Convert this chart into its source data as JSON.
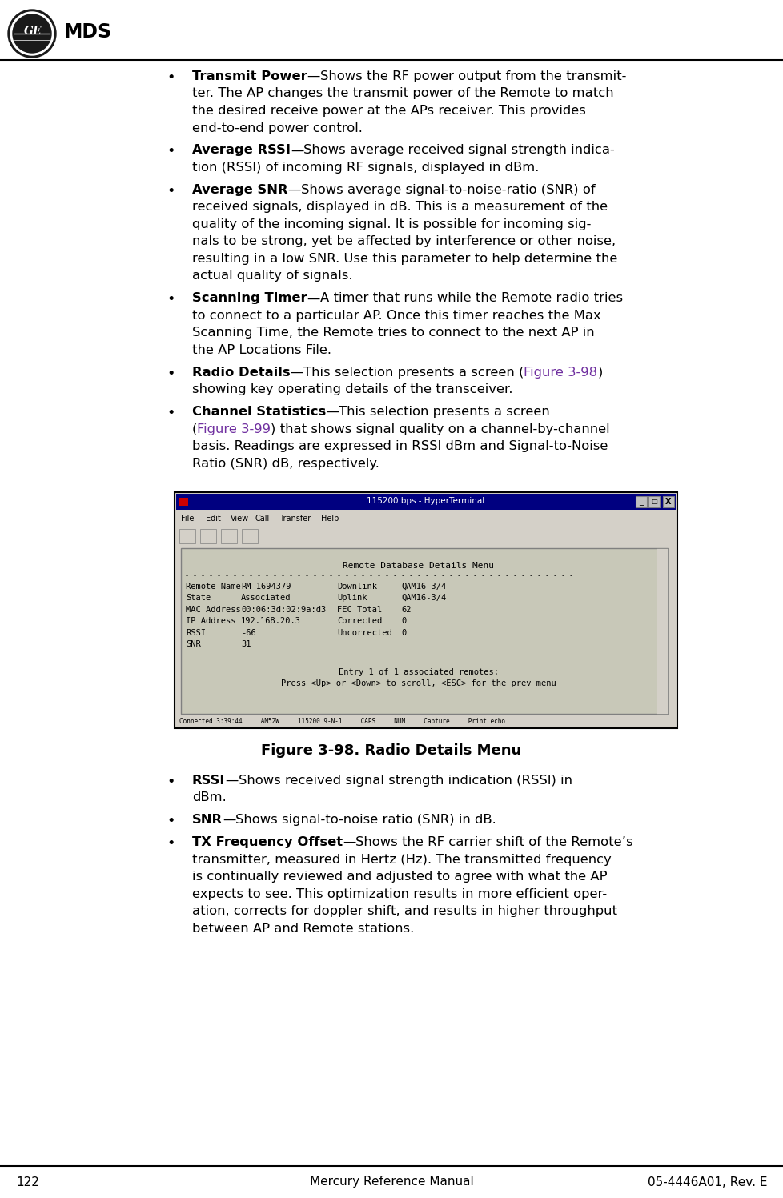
{
  "page_number": "122",
  "center_text": "Mercury Reference Manual",
  "right_text": "05-4446A01, Rev. E",
  "figure_caption": "Figure 3-98. Radio Details Menu",
  "bg_color": "#ffffff",
  "text_color": "#000000",
  "link_color": "#7030a0",
  "bullet_items": [
    {
      "bold": "Transmit Power",
      "lines": [
        "Shows the RF power output from the transmit-",
        "ter. The AP changes the transmit power of the Remote to match",
        "the desired receive power at the APs receiver. This provides",
        "end-to-end power control."
      ]
    },
    {
      "bold": "Average RSSI",
      "lines": [
        "Shows average received signal strength indica-",
        "tion (RSSI) of incoming RF signals, displayed in dBm."
      ]
    },
    {
      "bold": "Average SNR",
      "lines": [
        "Shows average signal-to-noise-ratio (SNR) of",
        "received signals, displayed in dB. This is a measurement of the",
        "quality of the incoming signal. It is possible for incoming sig-",
        "nals to be strong, yet be affected by interference or other noise,",
        "resulting in a low SNR. Use this parameter to help determine the",
        "actual quality of signals."
      ]
    },
    {
      "bold": "Scanning Timer",
      "lines": [
        "A timer that runs while the Remote radio tries",
        "to connect to a particular AP. Once this timer reaches the Max",
        "Scanning Time, the Remote tries to connect to the next AP in",
        "the AP Locations File."
      ]
    },
    {
      "bold": "Radio Details",
      "lines": [
        {
          "parts": [
            "This selection presents a screen (",
            {
              "link": "Figure 3-98"
            },
            ")"
          ]
        },
        "showing key operating details of the transceiver."
      ]
    },
    {
      "bold": "Channel Statistics",
      "lines": [
        "This selection presents a screen",
        {
          "parts": [
            "(",
            {
              "link": "Figure 3-99"
            },
            ") that shows signal quality on a channel-by-channel"
          ]
        },
        "basis. Readings are expressed in RSSI dBm and Signal-to-Noise",
        "Ratio (SNR) dB, respectively."
      ]
    }
  ],
  "bottom_bullets": [
    {
      "bold": "RSSI",
      "lines": [
        "Shows received signal strength indication (RSSI) in",
        "dBm."
      ]
    },
    {
      "bold": "SNR",
      "lines": [
        "Shows signal-to-noise ratio (SNR) in dB."
      ]
    },
    {
      "bold": "TX Frequency Offset",
      "lines": [
        "Shows the RF carrier shift of the Remote’s",
        "transmitter, measured in Hertz (Hz). The transmitted frequency",
        "is continually reviewed and adjusted to agree with what the AP",
        "expects to see. This optimization results in more efficient oper-",
        "ation, corrects for doppler shift, and results in higher throughput",
        "between AP and Remote stations."
      ]
    }
  ],
  "terminal_title": "115200 bps - HyperTerminal",
  "terminal_menu": [
    "File",
    "Edit",
    "View",
    "Call",
    "Transfer",
    "Help"
  ],
  "terminal_content_title": "Remote Database Details Menu",
  "terminal_separator": "- - - - - - - - - - - - - - - - - - - - - - - - - - - - - - - - - - - - - - - - - - - - - - - - -",
  "terminal_rows": [
    [
      "Remote Name",
      "RM_1694379",
      "Downlink",
      "QAM16-3/4"
    ],
    [
      "State",
      "Associated",
      "Uplink",
      "QAM16-3/4"
    ],
    [
      "MAC Address",
      "00:06:3d:02:9a:d3",
      "FEC Total",
      "62"
    ],
    [
      "IP Address",
      "192.168.20.3",
      "Corrected",
      "0"
    ],
    [
      "RSSI",
      "-66",
      "Uncorrected",
      "0"
    ],
    [
      "SNR",
      "31",
      "",
      ""
    ]
  ],
  "terminal_footer1": "Entry 1 of 1 associated remotes:",
  "terminal_footer2": "Press <Up> or <Down> to scroll, <ESC> for the prev menu",
  "terminal_status": "Connected 3:39:44     AM52W     115200 9-N-1     CAPS     NUM     Capture     Print echo"
}
